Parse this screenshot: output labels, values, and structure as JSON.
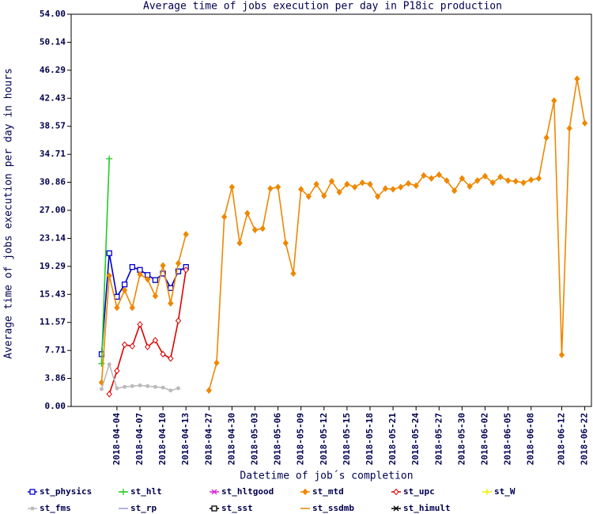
{
  "chart_data": {
    "type": "line",
    "title": "Average time of jobs execution per day in P18ic production",
    "x_label": "Datetime of job´s completion",
    "y_label": "Average time of jobs execution per day in hours",
    "categories": [
      null,
      null,
      "2018-04-04",
      null,
      null,
      "2018-04-07",
      null,
      null,
      "2018-04-10",
      null,
      null,
      "2018-04-13",
      null,
      null,
      "2018-04-27",
      null,
      null,
      "2018-04-30",
      null,
      null,
      "2018-05-03",
      null,
      null,
      "2018-05-06",
      null,
      null,
      "2018-05-09",
      null,
      null,
      "2018-05-12",
      null,
      null,
      "2018-05-15",
      null,
      null,
      "2018-05-18",
      null,
      null,
      "2018-05-21",
      null,
      null,
      "2018-05-24",
      null,
      null,
      "2018-05-27",
      null,
      null,
      "2018-05-30",
      null,
      null,
      "2018-06-02",
      null,
      null,
      "2018-06-05",
      null,
      null,
      "2018-06-08",
      null,
      null,
      null,
      "2018-06-12",
      null,
      null,
      "2018-06-22"
    ],
    "ylim": [
      0,
      54
    ],
    "yticks": [
      {
        "value": 0,
        "label": "0.00"
      },
      {
        "value": 3.86,
        "label": "3.86"
      },
      {
        "value": 7.71,
        "label": "7.71"
      },
      {
        "value": 11.57,
        "label": "11.57"
      },
      {
        "value": 15.43,
        "label": "15.43"
      },
      {
        "value": 19.29,
        "label": "19.29"
      },
      {
        "value": 23.14,
        "label": "23.14"
      },
      {
        "value": 27,
        "label": "27.00"
      },
      {
        "value": 30.86,
        "label": "30.86"
      },
      {
        "value": 34.71,
        "label": "34.71"
      },
      {
        "value": 38.57,
        "label": "38.57"
      },
      {
        "value": 42.43,
        "label": "42.43"
      },
      {
        "value": 46.29,
        "label": "46.29"
      },
      {
        "value": 50.14,
        "label": "50.14"
      },
      {
        "value": 54,
        "label": "54.00"
      }
    ],
    "series": [
      {
        "name": "st_physics",
        "color": "#0000cc",
        "marker": "square",
        "values": [
          7.2,
          21.1,
          15.1,
          16.8,
          19.2,
          18.8,
          18.1,
          17.4,
          18.3,
          16.3,
          18.6,
          19.2,
          null,
          null,
          null,
          null,
          null,
          null,
          null,
          null,
          null,
          null,
          null,
          null,
          null,
          null,
          null,
          null,
          null,
          null,
          null,
          null,
          null,
          null,
          null,
          null,
          null,
          null,
          null,
          null,
          null,
          null,
          null,
          null,
          null,
          null,
          null,
          null,
          null,
          null,
          null,
          null,
          null,
          null,
          null,
          null,
          null,
          null,
          null,
          null,
          null,
          null,
          null,
          null
        ]
      },
      {
        "name": "st_hlt",
        "color": "#22cc22",
        "marker": "plus",
        "values": [
          5.9,
          34.1,
          null,
          null,
          null,
          null,
          null,
          null,
          null,
          null,
          null,
          null,
          null,
          null,
          null,
          null,
          null,
          null,
          null,
          null,
          null,
          null,
          null,
          null,
          null,
          null,
          null,
          null,
          null,
          null,
          null,
          null,
          null,
          null,
          null,
          null,
          null,
          null,
          null,
          null,
          null,
          null,
          null,
          null,
          null,
          null,
          null,
          null,
          null,
          null,
          null,
          null,
          null,
          null,
          null,
          null,
          null,
          null,
          null,
          null,
          null,
          null,
          null,
          null
        ]
      },
      {
        "name": "st_hltgood",
        "color": "#dd22dd",
        "marker": "x"
      },
      {
        "name": "st_mtd",
        "color": "#ee8800",
        "marker": "diamond",
        "values": [
          3.3,
          18.0,
          13.6,
          16.0,
          13.6,
          18.2,
          17.5,
          15.2,
          19.4,
          14.2,
          19.7,
          23.7,
          null,
          null,
          2.2,
          6.0,
          26.1,
          30.2,
          22.5,
          26.6,
          24.3,
          24.5,
          30.0,
          30.2,
          22.5,
          18.3,
          29.9,
          28.9,
          30.6,
          29.0,
          31.0,
          29.5,
          30.6,
          30.2,
          30.8,
          30.6,
          28.9,
          30.0,
          29.9,
          30.2,
          30.7,
          30.4,
          31.8,
          31.4,
          31.9,
          31.1,
          29.7,
          31.4,
          30.3,
          31.1,
          31.7,
          30.8,
          31.6,
          31.1,
          31.0,
          30.8,
          31.2,
          31.4,
          37.0,
          42.1,
          7.1,
          38.3,
          45.1,
          39.0
        ]
      },
      {
        "name": "st_upc",
        "color": "#dd0000",
        "marker": "diamond-open",
        "values": [
          null,
          1.7,
          4.9,
          8.5,
          8.3,
          11.3,
          8.2,
          9.1,
          7.2,
          6.6,
          11.8,
          18.8,
          null,
          null,
          null,
          null,
          null,
          null,
          null,
          null,
          null,
          null,
          null,
          null,
          null,
          null,
          null,
          null,
          null,
          null,
          null,
          null,
          null,
          null,
          null,
          null,
          null,
          null,
          null,
          null,
          null,
          null,
          null,
          null,
          null,
          null,
          null,
          null,
          null,
          null,
          null,
          null,
          null,
          null,
          null,
          null,
          null,
          null,
          null,
          null,
          null,
          null,
          null,
          null
        ]
      },
      {
        "name": "st_W",
        "color": "#eeee00",
        "marker": "plus"
      },
      {
        "name": "st_fms",
        "color": "#bbbbbb",
        "marker": "circle",
        "values": [
          2.4,
          5.8,
          2.5,
          2.7,
          2.8,
          2.9,
          2.8,
          2.7,
          2.6,
          2.2,
          2.5,
          null,
          null,
          null,
          null,
          null,
          null,
          null,
          null,
          null,
          null,
          null,
          null,
          null,
          null,
          null,
          null,
          null,
          null,
          null,
          null,
          null,
          null,
          null,
          null,
          null,
          null,
          null,
          null,
          null,
          null,
          null,
          null,
          null,
          null,
          null,
          null,
          null,
          null,
          null,
          null,
          null,
          null,
          null,
          null,
          null,
          null,
          null,
          null,
          null,
          null,
          null,
          null,
          null
        ]
      },
      {
        "name": "st_rp",
        "color": "#9999dd",
        "marker": "line"
      },
      {
        "name": "st_sst",
        "color": "#000000",
        "marker": "square"
      },
      {
        "name": "st_ssdmb",
        "color": "#ee8800",
        "marker": "line"
      },
      {
        "name": "st_himult",
        "color": "#000000",
        "marker": "x"
      }
    ]
  }
}
